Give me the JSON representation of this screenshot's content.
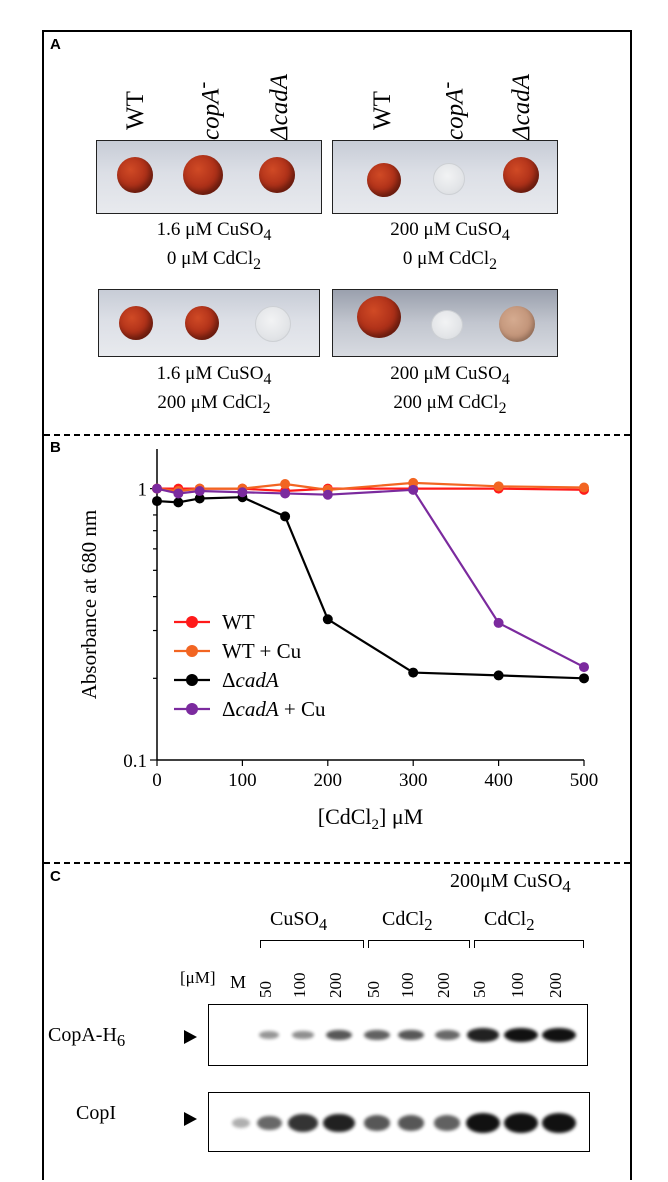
{
  "panel_a": {
    "letter": "A",
    "strains_left": [
      {
        "text": "WT",
        "italic": false
      },
      {
        "text": "copA",
        "sup": "-",
        "italic": true
      },
      {
        "text": "ΔcadA",
        "italic": true
      }
    ],
    "strains_right": [
      {
        "text": "WT",
        "italic": false
      },
      {
        "text": "copA",
        "sup": "-",
        "italic": true
      },
      {
        "text": "ΔcadA",
        "italic": true
      }
    ],
    "conditions": [
      {
        "line1": "1.6 μM CuSO",
        "sub1": "4",
        "line2": "0 μM CdCl",
        "sub2": "2"
      },
      {
        "line1": "200 μM CuSO",
        "sub1": "4",
        "line2": "0 μM CdCl",
        "sub2": "2"
      },
      {
        "line1": "1.6 μM CuSO",
        "sub1": "4",
        "line2": "200 μM CdCl",
        "sub2": "2"
      },
      {
        "line1": "200 μM CuSO",
        "sub1": "4",
        "line2": "200 μM CdCl",
        "sub2": "2"
      }
    ]
  },
  "panel_b": {
    "letter": "B",
    "chart_data": {
      "type": "line",
      "xlabel": "[CdCl",
      "xlabel_sub": "2",
      "xlabel_tail": "] μM",
      "ylabel": "Absorbance at 680 nm",
      "y_scale": "log",
      "xlim": [
        0,
        500
      ],
      "ylim": [
        0.1,
        1.4
      ],
      "x_ticks": [
        0,
        100,
        200,
        300,
        400,
        500
      ],
      "y_ticks": [
        {
          "value": 0.1,
          "label": "0.1"
        },
        {
          "value": 1,
          "label": "1"
        }
      ],
      "legend_position": "bottom-left",
      "series": [
        {
          "name": "WT",
          "color": "#ff1a1a",
          "x": [
            0,
            25,
            50,
            100,
            150,
            200,
            300,
            400,
            500
          ],
          "y": [
            1.0,
            1.0,
            1.0,
            1.0,
            0.98,
            1.0,
            1.0,
            1.0,
            0.99
          ]
        },
        {
          "name": "WT + Cu",
          "color": "#f26522",
          "x": [
            0,
            25,
            50,
            100,
            150,
            200,
            300,
            400,
            500
          ],
          "y": [
            1.0,
            0.98,
            1.0,
            1.0,
            1.04,
            0.99,
            1.05,
            1.02,
            1.01
          ]
        },
        {
          "name": "ΔcadA",
          "italic_part": "cadA",
          "color": "#000000",
          "x": [
            0,
            25,
            50,
            100,
            150,
            200,
            300,
            400,
            500
          ],
          "y": [
            0.9,
            0.89,
            0.92,
            0.93,
            0.79,
            0.33,
            0.21,
            0.205,
            0.2
          ]
        },
        {
          "name": "ΔcadA + Cu",
          "italic_part": "cadA",
          "color": "#7b2a9e",
          "x": [
            0,
            25,
            50,
            100,
            150,
            200,
            300,
            400,
            500
          ],
          "y": [
            1.0,
            0.96,
            0.98,
            0.97,
            0.96,
            0.95,
            0.99,
            0.32,
            0.22
          ]
        }
      ]
    }
  },
  "panel_c": {
    "letter": "C",
    "header_top": "200μM CuSO",
    "header_top_sub": "4",
    "group_labels": [
      {
        "text": "CuSO",
        "sub": "4"
      },
      {
        "text": "CdCl",
        "sub": "2"
      },
      {
        "text": "CdCl",
        "sub": "2"
      }
    ],
    "conc_label": "[μM]",
    "marker_label": "M",
    "lane_labels": [
      "50",
      "100",
      "200",
      "50",
      "100",
      "200",
      "50",
      "100",
      "200"
    ],
    "blot1_label": "CopA-H",
    "blot1_sub": "6",
    "blot2_label": "CopI",
    "blot1_bands": [
      0,
      0.25,
      0.3,
      0.6,
      0.55,
      0.6,
      0.5,
      0.9,
      1.0,
      1.0
    ],
    "blot2_bands": [
      0.1,
      0.5,
      0.8,
      0.9,
      0.6,
      0.6,
      0.55,
      1.0,
      1.0,
      1.0
    ]
  }
}
